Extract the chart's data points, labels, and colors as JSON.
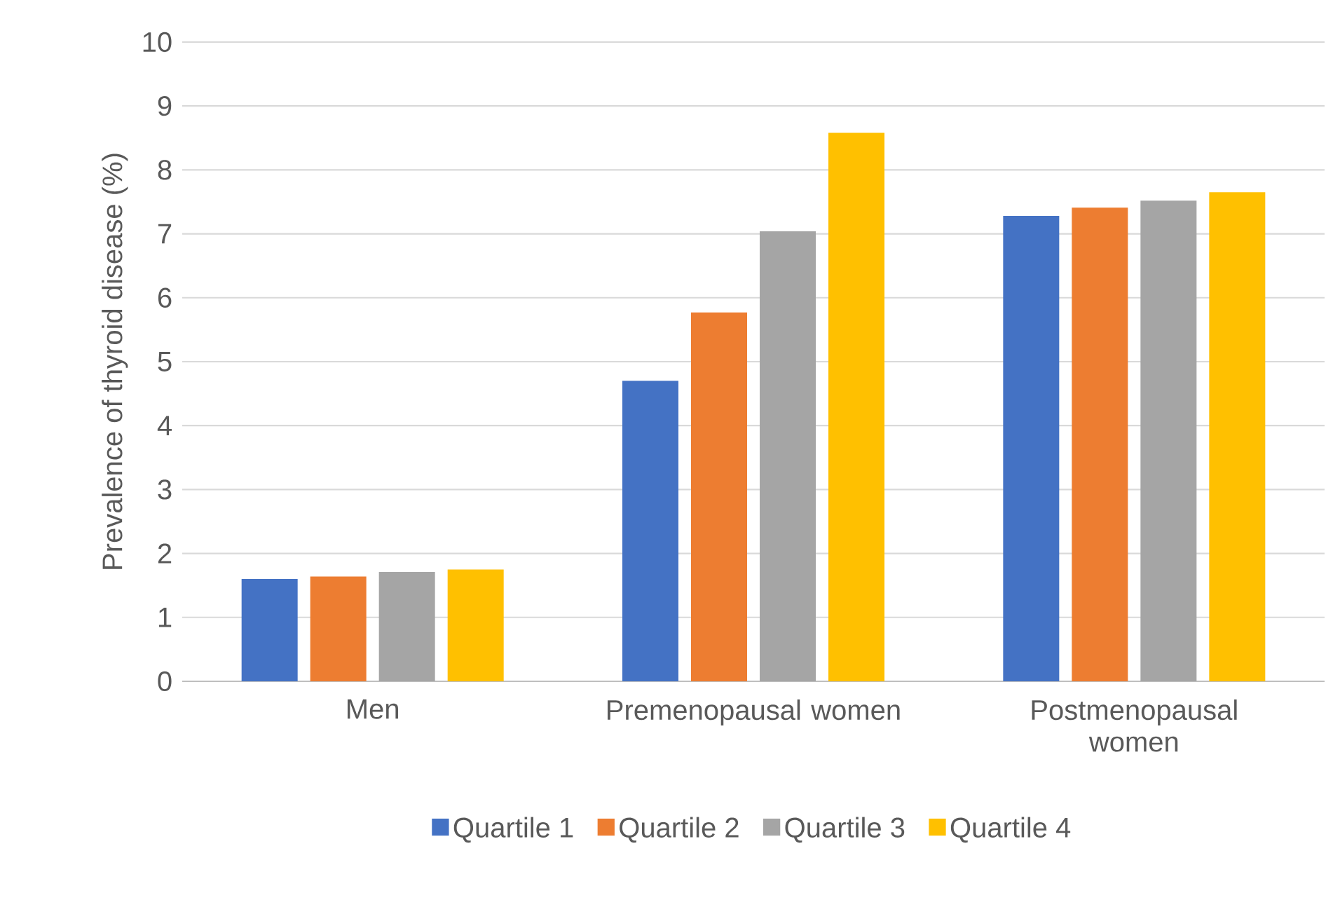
{
  "chart_data": {
    "type": "bar",
    "ylabel": "Prevalence of thyroid disease (%)",
    "categories": [
      "Men",
      "Premenopausal women",
      "Postmenopausal women"
    ],
    "series": [
      {
        "name": "Quartile 1",
        "color": "#4472c4",
        "values": [
          1.6,
          4.7,
          7.28
        ]
      },
      {
        "name": "Quartile 2",
        "color": "#ed7d31",
        "values": [
          1.64,
          5.77,
          7.41
        ]
      },
      {
        "name": "Quartile 3",
        "color": "#a5a5a5",
        "values": [
          1.71,
          7.04,
          7.52
        ]
      },
      {
        "name": "Quartile 4",
        "color": "#ffc000",
        "values": [
          1.75,
          8.58,
          7.65
        ]
      }
    ],
    "ylim": [
      0,
      10
    ],
    "yticks": [
      0,
      1,
      2,
      3,
      4,
      5,
      6,
      7,
      8,
      9,
      10
    ],
    "grid": "y",
    "legend": "bottom"
  }
}
